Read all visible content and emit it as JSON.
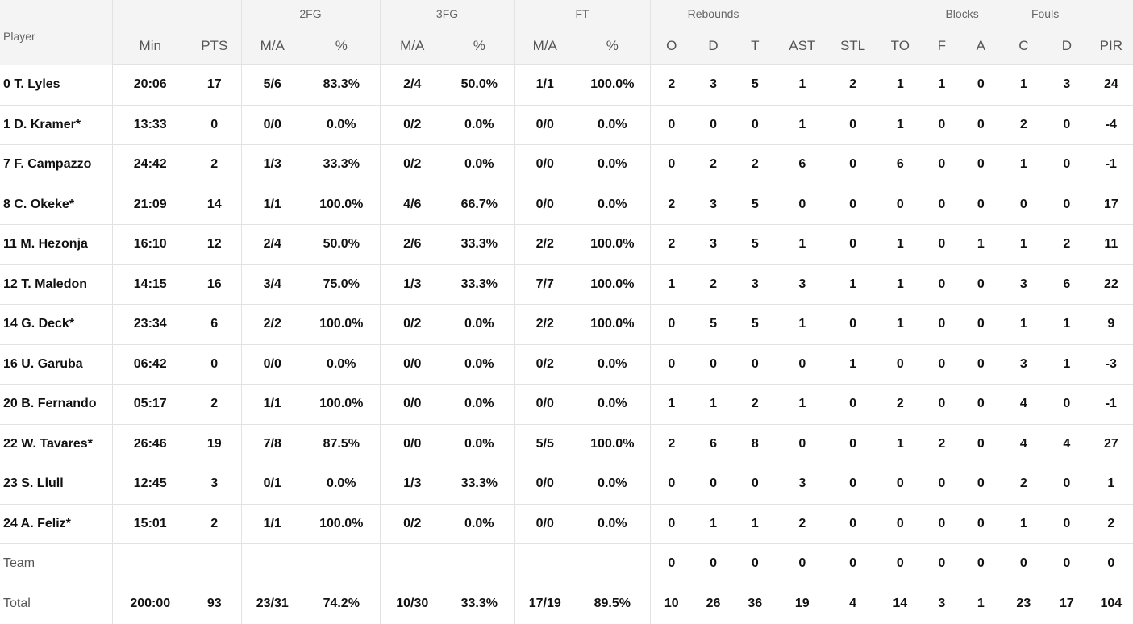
{
  "header": {
    "groups": {
      "fg2": "2FG",
      "fg3": "3FG",
      "ft": "FT",
      "rebounds": "Rebounds",
      "blocks": "Blocks",
      "fouls": "Fouls"
    },
    "columns": {
      "player": "Player",
      "min": "Min",
      "pts": "PTS",
      "fg2_ma": "M/A",
      "fg2_pct": "%",
      "fg3_ma": "M/A",
      "fg3_pct": "%",
      "ft_ma": "M/A",
      "ft_pct": "%",
      "reb_o": "O",
      "reb_d": "D",
      "reb_t": "T",
      "ast": "AST",
      "stl": "STL",
      "to": "TO",
      "blk_f": "F",
      "blk_a": "A",
      "fouls_c": "C",
      "fouls_d": "D",
      "pir": "PIR"
    }
  },
  "rows": [
    {
      "player": "0 T. Lyles",
      "min": "20:06",
      "pts": "17",
      "fg2_ma": "5/6",
      "fg2_pct": "83.3%",
      "fg3_ma": "2/4",
      "fg3_pct": "50.0%",
      "ft_ma": "1/1",
      "ft_pct": "100.0%",
      "reb_o": "2",
      "reb_d": "3",
      "reb_t": "5",
      "ast": "1",
      "stl": "2",
      "to": "1",
      "blk_f": "1",
      "blk_a": "0",
      "fouls_c": "1",
      "fouls_d": "3",
      "pir": "24"
    },
    {
      "player": "1 D. Kramer*",
      "min": "13:33",
      "pts": "0",
      "fg2_ma": "0/0",
      "fg2_pct": "0.0%",
      "fg3_ma": "0/2",
      "fg3_pct": "0.0%",
      "ft_ma": "0/0",
      "ft_pct": "0.0%",
      "reb_o": "0",
      "reb_d": "0",
      "reb_t": "0",
      "ast": "1",
      "stl": "0",
      "to": "1",
      "blk_f": "0",
      "blk_a": "0",
      "fouls_c": "2",
      "fouls_d": "0",
      "pir": "-4"
    },
    {
      "player": "7 F. Campazzo",
      "min": "24:42",
      "pts": "2",
      "fg2_ma": "1/3",
      "fg2_pct": "33.3%",
      "fg3_ma": "0/2",
      "fg3_pct": "0.0%",
      "ft_ma": "0/0",
      "ft_pct": "0.0%",
      "reb_o": "0",
      "reb_d": "2",
      "reb_t": "2",
      "ast": "6",
      "stl": "0",
      "to": "6",
      "blk_f": "0",
      "blk_a": "0",
      "fouls_c": "1",
      "fouls_d": "0",
      "pir": "-1"
    },
    {
      "player": "8 C. Okeke*",
      "min": "21:09",
      "pts": "14",
      "fg2_ma": "1/1",
      "fg2_pct": "100.0%",
      "fg3_ma": "4/6",
      "fg3_pct": "66.7%",
      "ft_ma": "0/0",
      "ft_pct": "0.0%",
      "reb_o": "2",
      "reb_d": "3",
      "reb_t": "5",
      "ast": "0",
      "stl": "0",
      "to": "0",
      "blk_f": "0",
      "blk_a": "0",
      "fouls_c": "0",
      "fouls_d": "0",
      "pir": "17"
    },
    {
      "player": "11 M. Hezonja",
      "min": "16:10",
      "pts": "12",
      "fg2_ma": "2/4",
      "fg2_pct": "50.0%",
      "fg3_ma": "2/6",
      "fg3_pct": "33.3%",
      "ft_ma": "2/2",
      "ft_pct": "100.0%",
      "reb_o": "2",
      "reb_d": "3",
      "reb_t": "5",
      "ast": "1",
      "stl": "0",
      "to": "1",
      "blk_f": "0",
      "blk_a": "1",
      "fouls_c": "1",
      "fouls_d": "2",
      "pir": "11"
    },
    {
      "player": "12 T. Maledon",
      "min": "14:15",
      "pts": "16",
      "fg2_ma": "3/4",
      "fg2_pct": "75.0%",
      "fg3_ma": "1/3",
      "fg3_pct": "33.3%",
      "ft_ma": "7/7",
      "ft_pct": "100.0%",
      "reb_o": "1",
      "reb_d": "2",
      "reb_t": "3",
      "ast": "3",
      "stl": "1",
      "to": "1",
      "blk_f": "0",
      "blk_a": "0",
      "fouls_c": "3",
      "fouls_d": "6",
      "pir": "22"
    },
    {
      "player": "14 G. Deck*",
      "min": "23:34",
      "pts": "6",
      "fg2_ma": "2/2",
      "fg2_pct": "100.0%",
      "fg3_ma": "0/2",
      "fg3_pct": "0.0%",
      "ft_ma": "2/2",
      "ft_pct": "100.0%",
      "reb_o": "0",
      "reb_d": "5",
      "reb_t": "5",
      "ast": "1",
      "stl": "0",
      "to": "1",
      "blk_f": "0",
      "blk_a": "0",
      "fouls_c": "1",
      "fouls_d": "1",
      "pir": "9"
    },
    {
      "player": "16 U. Garuba",
      "min": "06:42",
      "pts": "0",
      "fg2_ma": "0/0",
      "fg2_pct": "0.0%",
      "fg3_ma": "0/0",
      "fg3_pct": "0.0%",
      "ft_ma": "0/2",
      "ft_pct": "0.0%",
      "reb_o": "0",
      "reb_d": "0",
      "reb_t": "0",
      "ast": "0",
      "stl": "1",
      "to": "0",
      "blk_f": "0",
      "blk_a": "0",
      "fouls_c": "3",
      "fouls_d": "1",
      "pir": "-3"
    },
    {
      "player": "20 B. Fernando",
      "min": "05:17",
      "pts": "2",
      "fg2_ma": "1/1",
      "fg2_pct": "100.0%",
      "fg3_ma": "0/0",
      "fg3_pct": "0.0%",
      "ft_ma": "0/0",
      "ft_pct": "0.0%",
      "reb_o": "1",
      "reb_d": "1",
      "reb_t": "2",
      "ast": "1",
      "stl": "0",
      "to": "2",
      "blk_f": "0",
      "blk_a": "0",
      "fouls_c": "4",
      "fouls_d": "0",
      "pir": "-1"
    },
    {
      "player": "22 W. Tavares*",
      "min": "26:46",
      "pts": "19",
      "fg2_ma": "7/8",
      "fg2_pct": "87.5%",
      "fg3_ma": "0/0",
      "fg3_pct": "0.0%",
      "ft_ma": "5/5",
      "ft_pct": "100.0%",
      "reb_o": "2",
      "reb_d": "6",
      "reb_t": "8",
      "ast": "0",
      "stl": "0",
      "to": "1",
      "blk_f": "2",
      "blk_a": "0",
      "fouls_c": "4",
      "fouls_d": "4",
      "pir": "27"
    },
    {
      "player": "23 S. Llull",
      "min": "12:45",
      "pts": "3",
      "fg2_ma": "0/1",
      "fg2_pct": "0.0%",
      "fg3_ma": "1/3",
      "fg3_pct": "33.3%",
      "ft_ma": "0/0",
      "ft_pct": "0.0%",
      "reb_o": "0",
      "reb_d": "0",
      "reb_t": "0",
      "ast": "3",
      "stl": "0",
      "to": "0",
      "blk_f": "0",
      "blk_a": "0",
      "fouls_c": "2",
      "fouls_d": "0",
      "pir": "1"
    },
    {
      "player": "24 A. Feliz*",
      "min": "15:01",
      "pts": "2",
      "fg2_ma": "1/1",
      "fg2_pct": "100.0%",
      "fg3_ma": "0/2",
      "fg3_pct": "0.0%",
      "ft_ma": "0/0",
      "ft_pct": "0.0%",
      "reb_o": "0",
      "reb_d": "1",
      "reb_t": "1",
      "ast": "2",
      "stl": "0",
      "to": "0",
      "blk_f": "0",
      "blk_a": "0",
      "fouls_c": "1",
      "fouls_d": "0",
      "pir": "2"
    },
    {
      "player": "Team",
      "min": "",
      "pts": "",
      "fg2_ma": "",
      "fg2_pct": "",
      "fg3_ma": "",
      "fg3_pct": "",
      "ft_ma": "",
      "ft_pct": "",
      "reb_o": "0",
      "reb_d": "0",
      "reb_t": "0",
      "ast": "0",
      "stl": "0",
      "to": "0",
      "blk_f": "0",
      "blk_a": "0",
      "fouls_c": "0",
      "fouls_d": "0",
      "pir": "0"
    },
    {
      "player": "Total",
      "min": "200:00",
      "pts": "93",
      "fg2_ma": "23/31",
      "fg2_pct": "74.2%",
      "fg3_ma": "10/30",
      "fg3_pct": "33.3%",
      "ft_ma": "17/19",
      "ft_pct": "89.5%",
      "reb_o": "10",
      "reb_d": "26",
      "reb_t": "36",
      "ast": "19",
      "stl": "4",
      "to": "14",
      "blk_f": "3",
      "blk_a": "1",
      "fouls_c": "23",
      "fouls_d": "17",
      "pir": "104"
    }
  ]
}
